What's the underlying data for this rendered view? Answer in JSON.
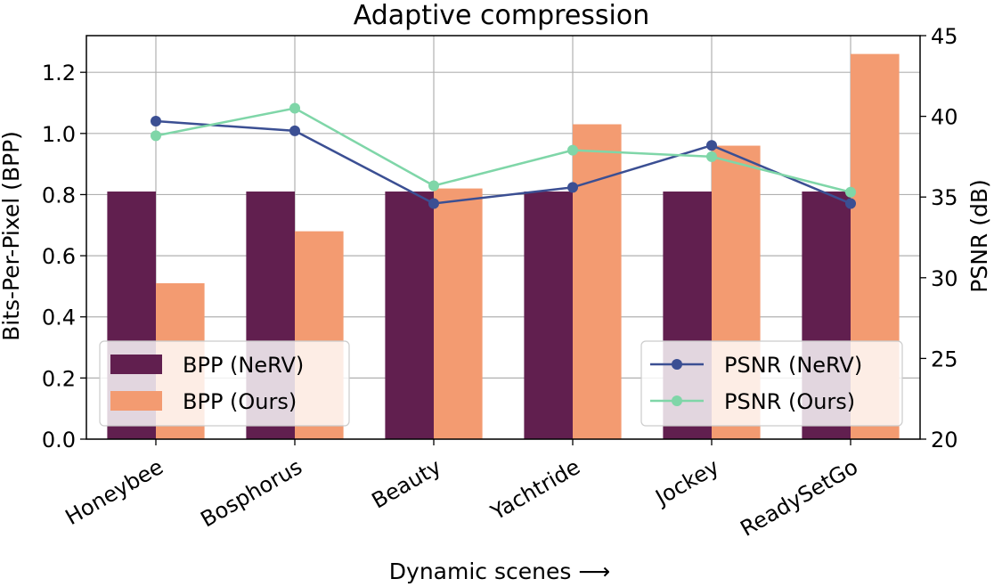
{
  "chart_data": {
    "type": "bar",
    "title": "Adaptive compression",
    "xlabel": "Dynamic scenes ⟶",
    "ylabel": "Bits-Per-Pixel (BPP)",
    "y2label": "PSNR (dB)",
    "categories": [
      "Honeybee",
      "Bosphorus",
      "Beauty",
      "Yachtride",
      "Jockey",
      "ReadySetGo"
    ],
    "ylim": [
      0,
      1.32
    ],
    "y2lim": [
      20,
      45
    ],
    "yticks": [
      "0.0",
      "0.2",
      "0.4",
      "0.6",
      "0.8",
      "1.0",
      "1.2"
    ],
    "y2ticks": [
      "20",
      "25",
      "30",
      "35",
      "40",
      "45"
    ],
    "grid": true,
    "bar_series": [
      {
        "name": "BPP (NeRV)",
        "color": "#611f4f",
        "values": [
          0.81,
          0.81,
          0.81,
          0.81,
          0.81,
          0.81
        ]
      },
      {
        "name": "BPP (Ours)",
        "color": "#f39b71",
        "values": [
          0.51,
          0.68,
          0.82,
          1.03,
          0.96,
          1.26
        ]
      }
    ],
    "line_series": [
      {
        "name": "PSNR (NeRV)",
        "color": "#3b4f93",
        "values": [
          39.7,
          39.1,
          34.6,
          35.6,
          38.2,
          34.6
        ]
      },
      {
        "name": "PSNR (Ours)",
        "color": "#7fd6a8",
        "values": [
          38.8,
          40.5,
          35.7,
          37.9,
          37.5,
          35.3
        ]
      }
    ],
    "legend_left_position": "lower-left",
    "legend_right_position": "lower-right"
  }
}
